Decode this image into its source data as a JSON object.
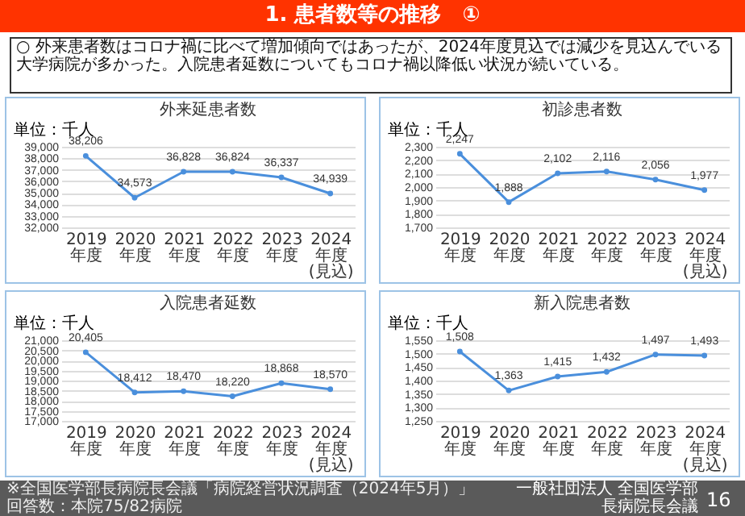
{
  "chart_data": [
    {
      "type": "other",
      "title": "1. 患者数等の推移　①",
      "annotations": [
        "○ 外来患者数はコロナ禍に比べて増加傾向ではあったが、2024年度見込では減少を見込んでいる大学病院が多かった。入院患者延数についてもコロナ禍以降低い状況が続いている。",
        "※全国医学部長病院長会議「病院経営状況調査（2024年5月）」回答数：本院75/82病院",
        "一般社団法人 全国医学部長病院長会議",
        "16"
      ]
    },
    {
      "type": "line",
      "title": "外来延患者数",
      "ylabel": "単位：千人",
      "categories": [
        "2019年度",
        "2020年度",
        "2021年度",
        "2022年度",
        "2023年度",
        "2024年度\n(見込)"
      ],
      "values": [
        38206,
        34573,
        36828,
        36824,
        36337,
        34939
      ],
      "value_labels": [
        "38,206",
        "34,573",
        "36,828",
        "36,824",
        "36,337",
        "34,939"
      ],
      "color": "#4a8fdc",
      "ylim": [
        32000,
        39000
      ],
      "yticks": [
        {
          "value": 32000,
          "label": "32,000"
        },
        {
          "value": 33000,
          "label": "33,000"
        },
        {
          "value": 34000,
          "label": "34,000"
        },
        {
          "value": 35000,
          "label": "35,000"
        },
        {
          "value": 36000,
          "label": "36,000"
        },
        {
          "value": 37000,
          "label": "37,000"
        },
        {
          "value": 38000,
          "label": "38,000"
        },
        {
          "value": 39000,
          "label": "39,000"
        }
      ],
      "grid": "y",
      "marker": "circle"
    },
    {
      "type": "line",
      "title": "初診患者数",
      "ylabel": "単位：千人",
      "categories": [
        "2019年度",
        "2020年度",
        "2021年度",
        "2022年度",
        "2023年度",
        "2024年度\n(見込)"
      ],
      "values": [
        2247,
        1888,
        2102,
        2116,
        2056,
        1977
      ],
      "value_labels": [
        "2,247",
        "1,888",
        "2,102",
        "2,116",
        "2,056",
        "1,977"
      ],
      "color": "#4a8fdc",
      "ylim": [
        1700,
        2300
      ],
      "yticks": [
        {
          "value": 1700,
          "label": "1,700"
        },
        {
          "value": 1800,
          "label": "1,800"
        },
        {
          "value": 1900,
          "label": "1,900"
        },
        {
          "value": 2000,
          "label": "2,000"
        },
        {
          "value": 2100,
          "label": "2,100"
        },
        {
          "value": 2200,
          "label": "2,200"
        },
        {
          "value": 2300,
          "label": "2,300"
        }
      ],
      "grid": "y",
      "marker": "circle"
    },
    {
      "type": "line",
      "title": "入院患者延数",
      "ylabel": "単位：千人",
      "categories": [
        "2019年度",
        "2020年度",
        "2021年度",
        "2022年度",
        "2023年度",
        "2024年度\n(見込)"
      ],
      "values": [
        20405,
        18412,
        18470,
        18220,
        18868,
        18570
      ],
      "value_labels": [
        "20,405",
        "18,412",
        "18,470",
        "18,220",
        "18,868",
        "18,570"
      ],
      "color": "#4a8fdc",
      "ylim": [
        17000,
        21000
      ],
      "yticks": [
        {
          "value": 17000,
          "label": "17,000"
        },
        {
          "value": 17500,
          "label": "17,500"
        },
        {
          "value": 18000,
          "label": "18,000"
        },
        {
          "value": 18500,
          "label": "18,500"
        },
        {
          "value": 19000,
          "label": "19,000"
        },
        {
          "value": 19500,
          "label": "19,500"
        },
        {
          "value": 20000,
          "label": "20,000"
        },
        {
          "value": 20500,
          "label": "20,500"
        },
        {
          "value": 21000,
          "label": "21,000"
        }
      ],
      "grid": "y",
      "marker": "circle"
    },
    {
      "type": "line",
      "title": "新入院患者数",
      "ylabel": "単位：千人",
      "categories": [
        "2019年度",
        "2020年度",
        "2021年度",
        "2022年度",
        "2023年度",
        "2024年度\n(見込)"
      ],
      "values": [
        1508,
        1363,
        1415,
        1432,
        1497,
        1493
      ],
      "value_labels": [
        "1,508",
        "1,363",
        "1,415",
        "1,432",
        "1,497",
        "1,493"
      ],
      "color": "#4a8fdc",
      "ylim": [
        1250,
        1550
      ],
      "yticks": [
        {
          "value": 1250,
          "label": "1,250"
        },
        {
          "value": 1300,
          "label": "1,300"
        },
        {
          "value": 1350,
          "label": "1,350"
        },
        {
          "value": 1400,
          "label": "1,400"
        },
        {
          "value": 1450,
          "label": "1,450"
        },
        {
          "value": 1500,
          "label": "1,500"
        },
        {
          "value": 1550,
          "label": "1,550"
        }
      ],
      "grid": "y",
      "marker": "circle"
    }
  ]
}
